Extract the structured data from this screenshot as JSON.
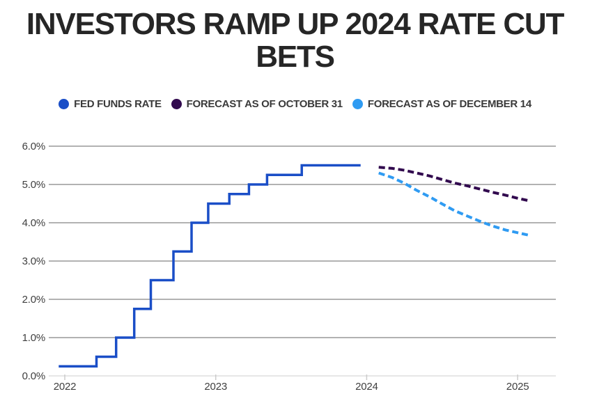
{
  "chart_data": {
    "type": "line",
    "title": "INVESTORS RAMP UP 2024 RATE CUT BETS",
    "xlabel": "",
    "ylabel": "",
    "ylim": [
      0,
      6
    ],
    "xlim": [
      2021.9,
      2025.25
    ],
    "grid": "horizontal",
    "legend_position": "top",
    "background_color": "#ffffff",
    "gridline_color": "#666666",
    "baseline_color": "#e6e6e6",
    "axis_text_color": "#3f3f3f",
    "ytick_labels": [
      "0.0%",
      "1.0%",
      "2.0%",
      "3.0%",
      "4.0%",
      "5.0%",
      "6.0%"
    ],
    "ytick_values": [
      0,
      1,
      2,
      3,
      4,
      5,
      6
    ],
    "xtick_labels": [
      "2022",
      "2023",
      "2024",
      "2025"
    ],
    "xtick_values": [
      2022,
      2023,
      2024,
      2025
    ],
    "series": [
      {
        "name": "FED FUNDS RATE",
        "color": "#1a4ec7",
        "style": "solid-step",
        "points": [
          [
            2021.96,
            0.25
          ],
          [
            2022.21,
            0.5
          ],
          [
            2022.34,
            1.0
          ],
          [
            2022.46,
            1.75
          ],
          [
            2022.57,
            2.5
          ],
          [
            2022.72,
            3.25
          ],
          [
            2022.84,
            4.0
          ],
          [
            2022.95,
            4.5
          ],
          [
            2023.09,
            4.75
          ],
          [
            2023.22,
            5.0
          ],
          [
            2023.34,
            5.25
          ],
          [
            2023.57,
            5.5
          ],
          [
            2023.96,
            5.5
          ]
        ]
      },
      {
        "name": "FORECAST AS OF OCTOBER 31",
        "color": "#31094e",
        "style": "dashed",
        "points": [
          [
            2024.08,
            5.45
          ],
          [
            2024.17,
            5.42
          ],
          [
            2024.25,
            5.37
          ],
          [
            2024.33,
            5.3
          ],
          [
            2024.42,
            5.22
          ],
          [
            2024.5,
            5.13
          ],
          [
            2024.58,
            5.04
          ],
          [
            2024.67,
            4.96
          ],
          [
            2024.75,
            4.88
          ],
          [
            2024.83,
            4.8
          ],
          [
            2024.92,
            4.72
          ],
          [
            2025.0,
            4.64
          ],
          [
            2025.08,
            4.57
          ]
        ]
      },
      {
        "name": "FORECAST AS OF DECEMBER 14",
        "color": "#2f9bf2",
        "style": "dashed",
        "points": [
          [
            2024.08,
            5.3
          ],
          [
            2024.17,
            5.18
          ],
          [
            2024.25,
            5.03
          ],
          [
            2024.33,
            4.85
          ],
          [
            2024.42,
            4.67
          ],
          [
            2024.5,
            4.49
          ],
          [
            2024.58,
            4.32
          ],
          [
            2024.67,
            4.17
          ],
          [
            2024.75,
            4.04
          ],
          [
            2024.83,
            3.92
          ],
          [
            2024.92,
            3.81
          ],
          [
            2025.0,
            3.74
          ],
          [
            2025.08,
            3.67
          ]
        ]
      }
    ]
  }
}
